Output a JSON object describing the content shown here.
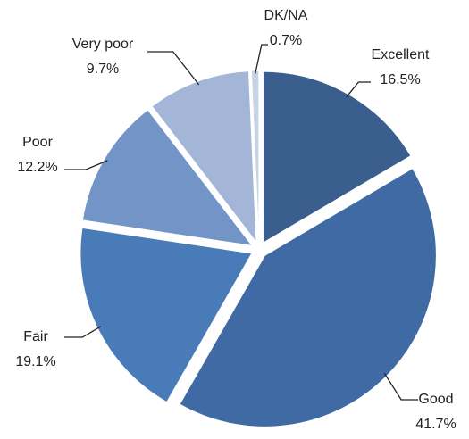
{
  "chart_data": {
    "type": "pie",
    "categories": [
      "Excellent",
      "Good",
      "Fair",
      "Poor",
      "Very poor",
      "DK/NA"
    ],
    "values": [
      16.5,
      41.7,
      19.1,
      12.2,
      9.7,
      0.7
    ],
    "value_labels": [
      "16.5%",
      "41.7%",
      "19.1%",
      "12.2%",
      "9.7%",
      "0.7%"
    ],
    "colors": [
      "#3a5f8f",
      "#3f6aa3",
      "#4a7bb9",
      "#7394c6",
      "#a4b6d7",
      "#c7d2e6"
    ]
  }
}
